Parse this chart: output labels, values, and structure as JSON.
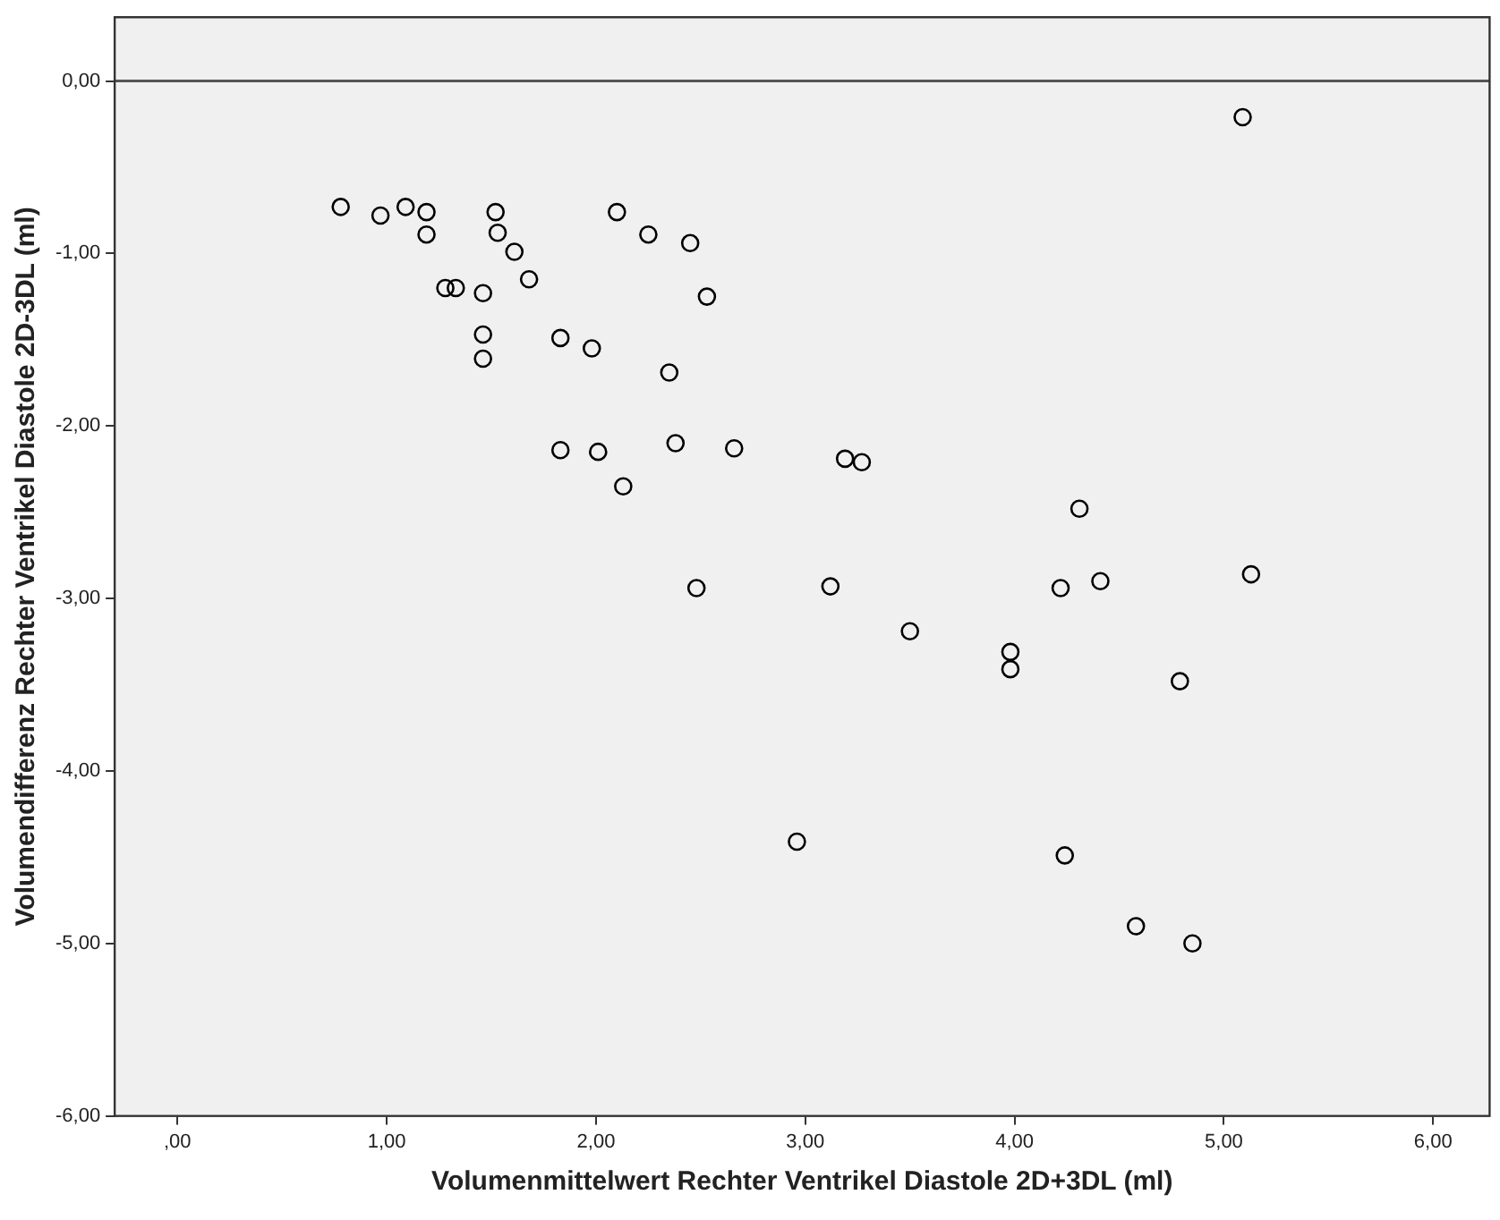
{
  "chart_data": {
    "type": "scatter",
    "xlabel": "Volumenmittelwert Rechter Ventrikel Diastole 2D+3DL (ml)",
    "ylabel": "Volumendifferenz Rechter Ventrikel Diastole 2D-3DL (ml)",
    "x": [
      0.78,
      0.97,
      1.09,
      1.19,
      1.19,
      1.52,
      1.53,
      1.61,
      1.68,
      1.28,
      1.33,
      1.46,
      1.46,
      1.46,
      1.83,
      1.98,
      2.1,
      2.25,
      2.45,
      2.53,
      2.35,
      1.83,
      2.01,
      2.13,
      2.38,
      2.66,
      3.19,
      3.27,
      4.31,
      2.48,
      3.12,
      3.5,
      3.98,
      3.98,
      4.22,
      4.41,
      5.13,
      4.79,
      2.96,
      4.24,
      4.58,
      4.85,
      5.09
    ],
    "values": [
      -0.73,
      -0.78,
      -0.73,
      -0.76,
      -0.89,
      -0.76,
      -0.88,
      -0.99,
      -1.15,
      -1.2,
      -1.2,
      -1.23,
      -1.47,
      -1.61,
      -1.49,
      -1.55,
      -0.76,
      -0.89,
      -0.94,
      -1.25,
      -1.69,
      -2.14,
      -2.15,
      -2.35,
      -2.1,
      -2.13,
      -2.19,
      -2.21,
      -2.48,
      -2.94,
      -2.93,
      -3.19,
      -3.31,
      -3.41,
      -2.94,
      -2.9,
      -2.86,
      -3.48,
      -4.41,
      -4.49,
      -4.9,
      -5.0,
      -0.21
    ],
    "color": "#000000",
    "marker": "circle",
    "grid": false,
    "legend": false,
    "xlim": [
      -0.3,
      6.27
    ],
    "ylim": [
      -6,
      0.37
    ],
    "xticks": [
      {
        "value": 0,
        "label": ",00"
      },
      {
        "value": 1,
        "label": "1,00"
      },
      {
        "value": 2,
        "label": "2,00"
      },
      {
        "value": 3,
        "label": "3,00"
      },
      {
        "value": 4,
        "label": "4,00"
      },
      {
        "value": 5,
        "label": "5,00"
      },
      {
        "value": 6,
        "label": "6,00"
      }
    ],
    "yticks": [
      {
        "value": -6,
        "label": "-6,00"
      },
      {
        "value": -5,
        "label": "-5,00"
      },
      {
        "value": -4,
        "label": "-4,00"
      },
      {
        "value": -3,
        "label": "-3,00"
      },
      {
        "value": -2,
        "label": "-2,00"
      },
      {
        "value": -1,
        "label": "-1,00"
      },
      {
        "value": 0,
        "label": "0,00"
      }
    ],
    "ref_lines": [
      {
        "axis": "y",
        "value": 0,
        "color": "#555555"
      }
    ]
  }
}
